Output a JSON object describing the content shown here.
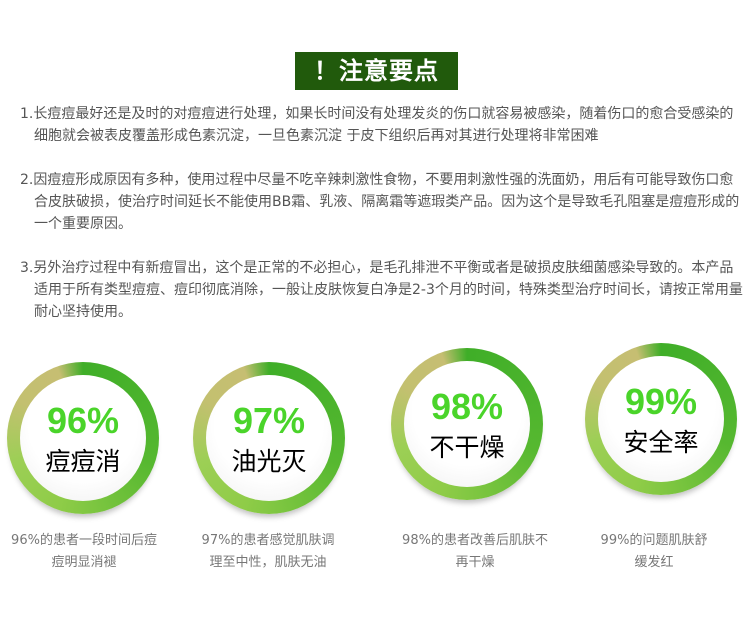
{
  "title": "！注意要点",
  "notes": [
    "1.长痘痘最好还是及时的对痘痘进行处理，如果长时间没有处理发炎的伤口就容易被感染，随着伤口的愈合受感染的细胞就会被表皮覆盖形成色素沉淀，一旦色素沉淀 于皮下组织后再对其进行处理将非常困难",
    "2.因痘痘形成原因有多种，使用过程中尽量不吃辛辣刺激性食物，不要用刺激性强的洗面奶，用后有可能导致伤口愈合皮肤破损，使治疗时间延长不能使用BB霜、乳液、隔离霜等遮瑕类产品。因为这个是导致毛孔阻塞是痘痘形成的一个重要原因。",
    "3.另外治疗过程中有新痘冒出，这个是正常的不必担心，是毛孔排泄不平衡或者是破损皮肤细菌感染导致的。本产品适用于所有类型痘痘、痘印彻底消除，一般让皮肤恢复白净是2-3个月的时间，特殊类型治疗时间长，请按正常用量耐心坚持使用。"
  ],
  "badges": [
    {
      "percent": "96%",
      "label": "痘痘消",
      "desc": "96%的患者一段时间后痘痘明显消褪"
    },
    {
      "percent": "97%",
      "label": "油光灭",
      "desc": "97%的患者感觉肌肤调理至中性，肌肤无油"
    },
    {
      "percent": "98%",
      "label": "不干燥",
      "desc": "98%的患者改善后肌肤不再干燥"
    },
    {
      "percent": "99%",
      "label": "安全率",
      "desc": "99%的问题肌肤舒缓发红"
    }
  ],
  "colors": {
    "title_bg": "#215a0c",
    "percent": "#4ad42a",
    "ring_green": "#3fae28",
    "ring_tan": "#c6be72"
  }
}
